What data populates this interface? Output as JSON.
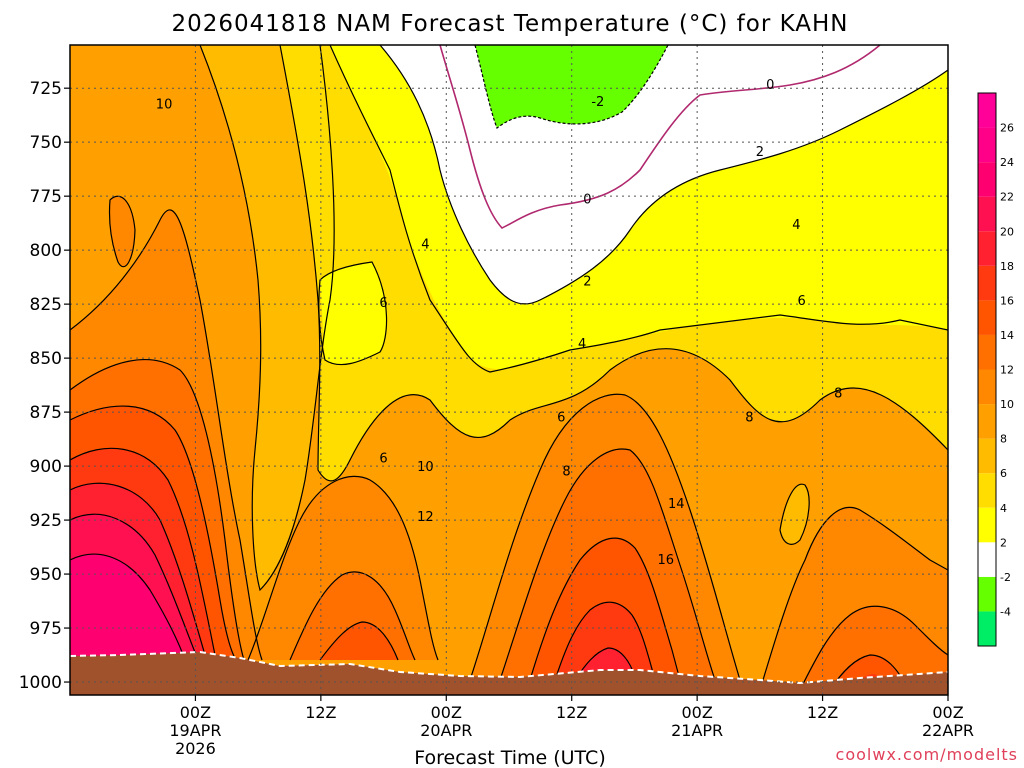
{
  "chart_data": {
    "type": "contour",
    "title": "2026041818 NAM Forecast Temperature (°C) for KAHN",
    "xlabel": "Forecast Time (UTC)",
    "ylabel": "",
    "credit": "coolwx.com/modelts",
    "y_axis": {
      "unit": "hPa",
      "inverted": true,
      "ticks": [
        725,
        750,
        775,
        800,
        825,
        850,
        875,
        900,
        925,
        950,
        975,
        1000
      ],
      "ylim": [
        1006,
        705
      ]
    },
    "x_axis": {
      "unit": "forecast hour",
      "xlim": [
        -6,
        78
      ],
      "ticks": [
        {
          "x": 6,
          "line1": "00Z",
          "line2": "19APR",
          "line3": "2026"
        },
        {
          "x": 18,
          "line1": "12Z",
          "line2": "",
          "line3": ""
        },
        {
          "x": 30,
          "line1": "00Z",
          "line2": "20APR",
          "line3": ""
        },
        {
          "x": 42,
          "line1": "12Z",
          "line2": "",
          "line3": ""
        },
        {
          "x": 54,
          "line1": "00Z",
          "line2": "21APR",
          "line3": ""
        },
        {
          "x": 66,
          "line1": "12Z",
          "line2": "",
          "line3": ""
        },
        {
          "x": 78,
          "line1": "00Z",
          "line2": "22APR",
          "line3": ""
        }
      ],
      "grid": true
    },
    "colorbar": {
      "levels": [
        -4,
        -2,
        2,
        4,
        6,
        8,
        10,
        12,
        14,
        16,
        18,
        20,
        22,
        24,
        26
      ],
      "bands": [
        {
          "color": "#00ee66"
        },
        {
          "color": "#66ff00"
        },
        {
          "color": "#ffffff"
        },
        {
          "color": "#ffff00"
        },
        {
          "color": "#ffdd00"
        },
        {
          "color": "#ffbb00"
        },
        {
          "color": "#ffa000"
        },
        {
          "color": "#ff8800"
        },
        {
          "color": "#ff7000"
        },
        {
          "color": "#ff5500"
        },
        {
          "color": "#ff3a10"
        },
        {
          "color": "#ff2030"
        },
        {
          "color": "#ff1050"
        },
        {
          "color": "#ff0070"
        },
        {
          "color": "#ff0088"
        },
        {
          "color": "#ff0099"
        }
      ]
    },
    "contour_labels": [
      {
        "value": "10",
        "x": 3,
        "p": 732
      },
      {
        "value": "-2",
        "x": 44.5,
        "p": 731
      },
      {
        "value": "0",
        "x": 61,
        "p": 723
      },
      {
        "value": "0",
        "x": 43.5,
        "p": 776
      },
      {
        "value": "2",
        "x": 60,
        "p": 754
      },
      {
        "value": "2",
        "x": 43.5,
        "p": 814
      },
      {
        "value": "4",
        "x": 28,
        "p": 797
      },
      {
        "value": "4",
        "x": 63.5,
        "p": 788
      },
      {
        "value": "4",
        "x": 43,
        "p": 843
      },
      {
        "value": "6",
        "x": 24,
        "p": 824
      },
      {
        "value": "6",
        "x": 64,
        "p": 823
      },
      {
        "value": "6",
        "x": 41,
        "p": 877
      },
      {
        "value": "6",
        "x": 24,
        "p": 896
      },
      {
        "value": "8",
        "x": 59,
        "p": 877
      },
      {
        "value": "8",
        "x": 67.5,
        "p": 866
      },
      {
        "value": "8",
        "x": 41.5,
        "p": 902
      },
      {
        "value": "10",
        "x": 28,
        "p": 900
      },
      {
        "value": "12",
        "x": 28,
        "p": 923
      },
      {
        "value": "14",
        "x": 52,
        "p": 917
      },
      {
        "value": "16",
        "x": 51,
        "p": 943
      }
    ]
  }
}
